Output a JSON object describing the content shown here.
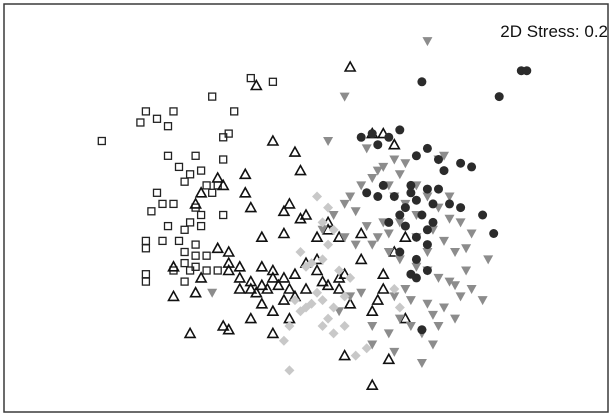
{
  "annotation": "2D Stress: 0.2",
  "chart_data": {
    "type": "scatter",
    "title": "",
    "xlabel": "",
    "ylabel": "",
    "xlim": [
      0,
      100
    ],
    "ylim": [
      0,
      100
    ],
    "grid": false,
    "legend": "none",
    "series": [
      {
        "marker": "open-square",
        "color": "#222222",
        "points": [
          [
            13,
            70
          ],
          [
            20,
            75
          ],
          [
            21,
            78
          ],
          [
            23,
            76
          ],
          [
            25,
            74
          ],
          [
            26,
            78
          ],
          [
            33,
            82
          ],
          [
            37,
            78
          ],
          [
            35,
            71
          ],
          [
            36,
            72
          ],
          [
            40,
            87
          ],
          [
            44,
            86
          ],
          [
            25,
            66
          ],
          [
            30,
            66
          ],
          [
            35,
            65
          ],
          [
            27,
            63
          ],
          [
            29,
            61
          ],
          [
            28,
            59
          ],
          [
            31,
            62
          ],
          [
            32,
            58
          ],
          [
            34,
            58
          ],
          [
            33,
            56
          ],
          [
            23,
            56
          ],
          [
            24,
            53
          ],
          [
            26,
            53
          ],
          [
            30,
            52
          ],
          [
            22,
            51
          ],
          [
            31,
            50
          ],
          [
            35,
            50
          ],
          [
            29,
            48
          ],
          [
            31,
            47
          ],
          [
            25,
            47
          ],
          [
            28,
            46
          ],
          [
            21,
            43
          ],
          [
            24,
            43
          ],
          [
            21,
            41
          ],
          [
            27,
            43
          ],
          [
            30,
            42
          ],
          [
            28,
            40
          ],
          [
            30,
            39
          ],
          [
            32,
            39
          ],
          [
            28,
            37
          ],
          [
            30,
            36
          ],
          [
            26,
            35
          ],
          [
            29,
            35
          ],
          [
            32,
            35
          ],
          [
            34,
            35
          ],
          [
            21,
            34
          ],
          [
            28,
            32
          ],
          [
            21,
            32
          ]
        ]
      },
      {
        "marker": "open-triangle",
        "color": "#111111",
        "points": [
          [
            58,
            90
          ],
          [
            41,
            85
          ],
          [
            44,
            70
          ],
          [
            34,
            60
          ],
          [
            35,
            58
          ],
          [
            39,
            61
          ],
          [
            31,
            56
          ],
          [
            30,
            53
          ],
          [
            39,
            56
          ],
          [
            48,
            67
          ],
          [
            49,
            62
          ],
          [
            62,
            72
          ],
          [
            64,
            72
          ],
          [
            66,
            69
          ],
          [
            40,
            52
          ],
          [
            46,
            51
          ],
          [
            47,
            53
          ],
          [
            49,
            49
          ],
          [
            50,
            50
          ],
          [
            52,
            44
          ],
          [
            54,
            46
          ],
          [
            56,
            44
          ],
          [
            46,
            45
          ],
          [
            42,
            44
          ],
          [
            34,
            41
          ],
          [
            36,
            40
          ],
          [
            36,
            37
          ],
          [
            38,
            36
          ],
          [
            36,
            35
          ],
          [
            26,
            36
          ],
          [
            31,
            33
          ],
          [
            42,
            36
          ],
          [
            44,
            35
          ],
          [
            38,
            33
          ],
          [
            40,
            32
          ],
          [
            44,
            33
          ],
          [
            46,
            33
          ],
          [
            42,
            31
          ],
          [
            40,
            30
          ],
          [
            43,
            30
          ],
          [
            45,
            31
          ],
          [
            48,
            34
          ],
          [
            50,
            37
          ],
          [
            52,
            35
          ],
          [
            54,
            31
          ],
          [
            56,
            30
          ],
          [
            50,
            30
          ],
          [
            53,
            32
          ],
          [
            48,
            28
          ],
          [
            46,
            27
          ],
          [
            47,
            30
          ],
          [
            41,
            29
          ],
          [
            38,
            30
          ],
          [
            26,
            28
          ],
          [
            30,
            29
          ],
          [
            42,
            26
          ],
          [
            44,
            24
          ],
          [
            40,
            22
          ],
          [
            35,
            20
          ],
          [
            36,
            19
          ],
          [
            44,
            18
          ],
          [
            47,
            22
          ],
          [
            29,
            18
          ],
          [
            52,
            38
          ],
          [
            56,
            33
          ],
          [
            57,
            34
          ],
          [
            64,
            30
          ],
          [
            68,
            22
          ],
          [
            65,
            11
          ],
          [
            57,
            12
          ],
          [
            63,
            27
          ],
          [
            58,
            26
          ],
          [
            62,
            24
          ],
          [
            60,
            38
          ],
          [
            64,
            34
          ],
          [
            66,
            40
          ],
          [
            68,
            44
          ],
          [
            60,
            45
          ],
          [
            54,
            48
          ],
          [
            62,
            4
          ]
        ]
      },
      {
        "marker": "filled-down-triangle",
        "color": "#8c8c8c",
        "points": [
          [
            72,
            97
          ],
          [
            57,
            82
          ],
          [
            54,
            70
          ],
          [
            61,
            68
          ],
          [
            63,
            62
          ],
          [
            65,
            58
          ],
          [
            67,
            61
          ],
          [
            74,
            65
          ],
          [
            75,
            66
          ],
          [
            66,
            55
          ],
          [
            68,
            53
          ],
          [
            70,
            50
          ],
          [
            67,
            48
          ],
          [
            65,
            45
          ],
          [
            63,
            44
          ],
          [
            61,
            47
          ],
          [
            59,
            51
          ],
          [
            57,
            53
          ],
          [
            55,
            50
          ],
          [
            53,
            46
          ],
          [
            57,
            44
          ],
          [
            59,
            42
          ],
          [
            62,
            42
          ],
          [
            65,
            40
          ],
          [
            67,
            38
          ],
          [
            70,
            36
          ],
          [
            72,
            35
          ],
          [
            74,
            33
          ],
          [
            76,
            32
          ],
          [
            79,
            35
          ],
          [
            70,
            44
          ],
          [
            73,
            46
          ],
          [
            75,
            43
          ],
          [
            78,
            48
          ],
          [
            80,
            45
          ],
          [
            77,
            40
          ],
          [
            72,
            40
          ],
          [
            68,
            30
          ],
          [
            66,
            28
          ],
          [
            69,
            27
          ],
          [
            72,
            26
          ],
          [
            58,
            28
          ],
          [
            60,
            29
          ],
          [
            56,
            24
          ],
          [
            62,
            20
          ],
          [
            65,
            18
          ],
          [
            67,
            22
          ],
          [
            69,
            20
          ],
          [
            71,
            18
          ],
          [
            73,
            23
          ],
          [
            75,
            25
          ],
          [
            77,
            22
          ],
          [
            78,
            28
          ],
          [
            80,
            30
          ],
          [
            82,
            27
          ],
          [
            62,
            15
          ],
          [
            66,
            13
          ],
          [
            71,
            10
          ],
          [
            73,
            15
          ],
          [
            74,
            20
          ],
          [
            60,
            58
          ],
          [
            58,
            55
          ],
          [
            62,
            60
          ],
          [
            64,
            63
          ],
          [
            66,
            65
          ],
          [
            68,
            64
          ],
          [
            70,
            58
          ],
          [
            72,
            55
          ],
          [
            74,
            52
          ],
          [
            76,
            55
          ],
          [
            79,
            41
          ],
          [
            83,
            38
          ],
          [
            76,
            49
          ],
          [
            33,
            29
          ],
          [
            77,
            31
          ],
          [
            64,
            48
          ]
        ]
      },
      {
        "marker": "filled-circle",
        "color": "#2b2b2b",
        "points": [
          [
            71,
            86
          ],
          [
            62,
            72
          ],
          [
            60,
            71
          ],
          [
            63,
            69
          ],
          [
            65,
            71
          ],
          [
            67,
            73
          ],
          [
            70,
            66
          ],
          [
            72,
            68
          ],
          [
            74,
            65
          ],
          [
            78,
            64
          ],
          [
            80,
            63
          ],
          [
            75,
            62
          ],
          [
            64,
            58
          ],
          [
            66,
            55
          ],
          [
            63,
            55
          ],
          [
            61,
            56
          ],
          [
            69,
            58
          ],
          [
            67,
            50
          ],
          [
            68,
            52
          ],
          [
            70,
            54
          ],
          [
            68,
            47
          ],
          [
            70,
            44
          ],
          [
            72,
            46
          ],
          [
            73,
            48
          ],
          [
            71,
            50
          ],
          [
            73,
            53
          ],
          [
            69,
            56
          ],
          [
            72,
            57
          ],
          [
            74,
            57
          ],
          [
            76,
            53
          ],
          [
            78,
            52
          ],
          [
            72,
            42
          ],
          [
            70,
            38
          ],
          [
            72,
            35
          ],
          [
            70,
            33
          ],
          [
            69,
            34
          ],
          [
            65,
            48
          ],
          [
            67,
            40
          ],
          [
            71,
            19
          ],
          [
            82,
            50
          ],
          [
            84,
            45
          ],
          [
            85,
            82
          ],
          [
            89,
            89
          ],
          [
            90,
            89
          ]
        ]
      },
      {
        "marker": "filled-diamond",
        "color": "#c8c8c8",
        "points": [
          [
            52,
            55
          ],
          [
            54,
            52
          ],
          [
            53,
            48
          ],
          [
            55,
            46
          ],
          [
            54,
            42
          ],
          [
            53,
            38
          ],
          [
            50,
            36
          ],
          [
            49,
            40
          ],
          [
            51,
            37
          ],
          [
            56,
            35
          ],
          [
            58,
            33
          ],
          [
            57,
            28
          ],
          [
            52,
            29
          ],
          [
            53,
            27
          ],
          [
            51,
            26
          ],
          [
            50,
            25
          ],
          [
            49,
            24
          ],
          [
            48,
            27
          ],
          [
            55,
            25
          ],
          [
            54,
            22
          ],
          [
            53,
            20
          ],
          [
            55,
            18
          ],
          [
            57,
            20
          ],
          [
            47,
            20
          ],
          [
            46,
            16
          ],
          [
            59,
            12
          ],
          [
            61,
            14
          ],
          [
            67,
            25
          ],
          [
            66,
            30
          ],
          [
            47,
            8
          ]
        ]
      }
    ]
  }
}
